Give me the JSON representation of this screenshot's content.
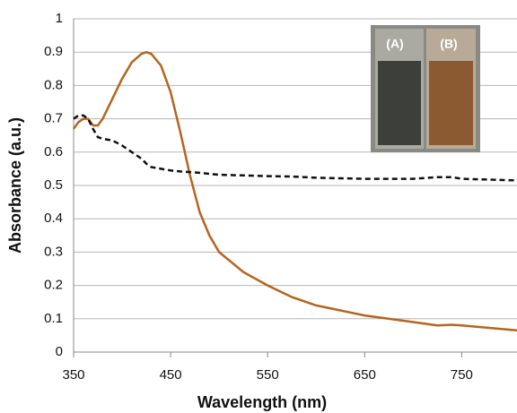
{
  "chart_data": {
    "type": "line",
    "x_label": "Wavelength (nm)",
    "y_label": "Absorbance (a.u.)",
    "annotations": [
      "(A)",
      "(B)"
    ],
    "xlim": [
      350,
      807
    ],
    "xticks": [
      350,
      450,
      550,
      650,
      750
    ],
    "ylim": [
      0,
      1
    ],
    "yticks": [
      0,
      0.1,
      0.2,
      0.3,
      0.4,
      0.5,
      0.6,
      0.7,
      0.8,
      0.9,
      1
    ],
    "grid": true,
    "x": [
      350,
      355,
      360,
      365,
      370,
      375,
      380,
      390,
      400,
      410,
      420,
      425,
      430,
      440,
      450,
      460,
      470,
      480,
      490,
      500,
      525,
      550,
      575,
      600,
      650,
      700,
      725,
      740,
      750,
      807
    ],
    "series": [
      {
        "color": "#b5651d",
        "dash": "solid",
        "values": [
          0.67,
          0.69,
          0.7,
          0.7,
          0.68,
          0.68,
          0.7,
          0.76,
          0.82,
          0.87,
          0.895,
          0.9,
          0.895,
          0.86,
          0.78,
          0.66,
          0.53,
          0.42,
          0.35,
          0.3,
          0.24,
          0.2,
          0.165,
          0.14,
          0.11,
          0.09,
          0.08,
          0.082,
          0.08,
          0.065
        ]
      },
      {
        "color": "#111111",
        "dash": "dashed",
        "values": [
          0.7,
          0.71,
          0.71,
          0.7,
          0.67,
          0.645,
          0.64,
          0.635,
          0.62,
          0.6,
          0.58,
          0.565,
          0.555,
          0.55,
          0.545,
          0.542,
          0.54,
          0.538,
          0.535,
          0.532,
          0.53,
          0.528,
          0.527,
          0.523,
          0.52,
          0.52,
          0.525,
          0.525,
          0.52,
          0.515
        ]
      }
    ]
  }
}
